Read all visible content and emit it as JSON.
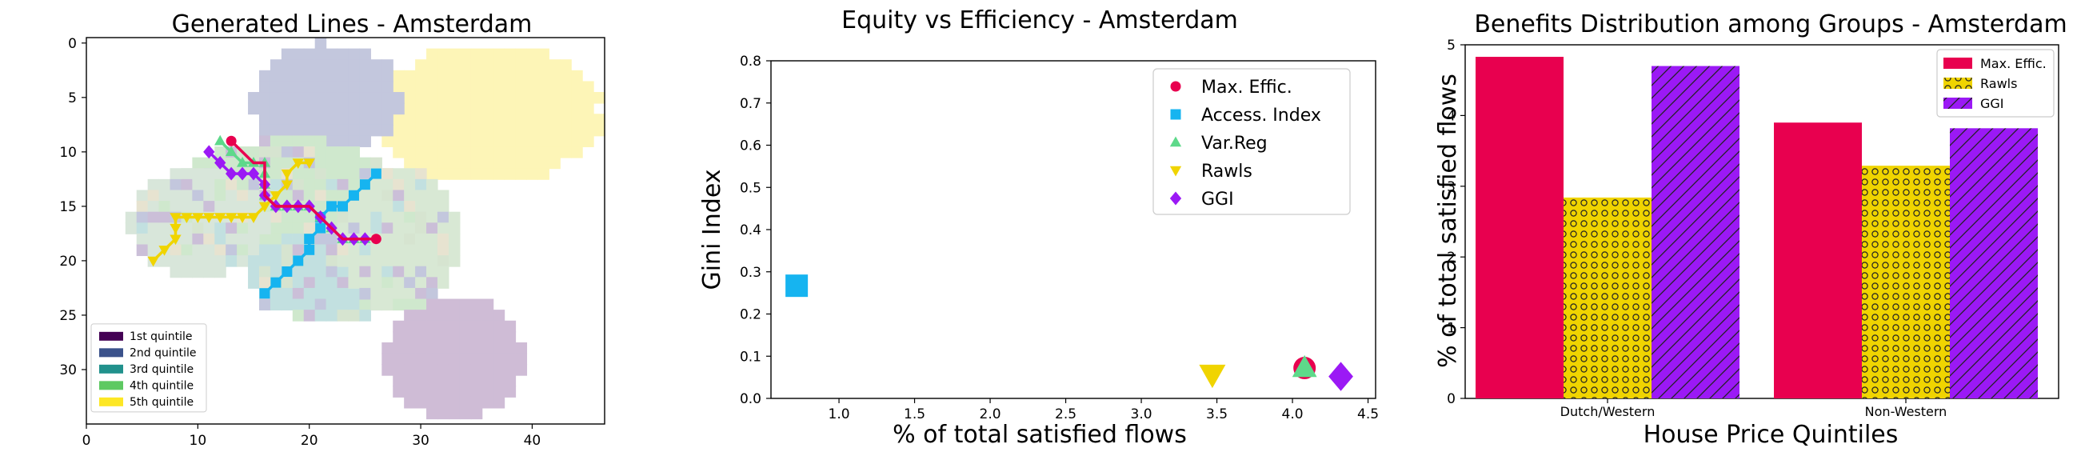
{
  "colors": {
    "max_effic": "#e8004f",
    "access_index": "#16b4f0",
    "var_reg": "#5ed98a",
    "rawls": "#f0d400",
    "ggi": "#9b19f5",
    "quintile_1": "#440154",
    "quintile_2": "#3b528b",
    "quintile_3": "#21918c",
    "quintile_4": "#5ec962",
    "quintile_5": "#fde725"
  },
  "chart_data": [
    {
      "type": "map",
      "title": "Generated Lines - Amsterdam",
      "xlim": [
        0,
        46.5
      ],
      "ylim": [
        35,
        -0.5
      ],
      "x_ticks": [
        "0",
        "10",
        "20",
        "30",
        "40"
      ],
      "y_ticks": [
        "0",
        "5",
        "10",
        "15",
        "20",
        "25",
        "30"
      ],
      "legend": {
        "placement": "lower-left",
        "entries": [
          "1st quintile",
          "2nd quintile",
          "3rd quintile",
          "4th quintile",
          "5th quintile"
        ]
      },
      "series": [
        {
          "name": "Max. Effic.",
          "marker": "circle",
          "points": [
            [
              13,
              9
            ],
            [
              14,
              10
            ],
            [
              15,
              11
            ],
            [
              16,
              11
            ],
            [
              16,
              12
            ],
            [
              16,
              13
            ],
            [
              16,
              14
            ],
            [
              17,
              15
            ],
            [
              18,
              15
            ],
            [
              19,
              15
            ],
            [
              20,
              15
            ],
            [
              21,
              16
            ],
            [
              22,
              17
            ],
            [
              23,
              18
            ],
            [
              24,
              18
            ],
            [
              25,
              18
            ],
            [
              26,
              18
            ]
          ]
        },
        {
          "name": "Access. Index",
          "marker": "square",
          "points": [
            [
              16,
              23
            ],
            [
              17,
              22
            ],
            [
              18,
              21
            ],
            [
              19,
              20
            ],
            [
              20,
              19
            ],
            [
              20,
              18
            ],
            [
              21,
              17
            ],
            [
              21,
              16
            ],
            [
              22,
              15
            ],
            [
              23,
              15
            ],
            [
              24,
              14
            ],
            [
              25,
              13
            ],
            [
              26,
              12
            ]
          ]
        },
        {
          "name": "Var.Reg",
          "marker": "triangle-up",
          "points": [
            [
              12,
              9
            ],
            [
              13,
              10
            ],
            [
              14,
              11
            ],
            [
              15,
              11
            ],
            [
              16,
              11
            ],
            [
              16,
              12
            ],
            [
              16,
              13
            ],
            [
              16,
              14
            ],
            [
              17,
              15
            ],
            [
              18,
              15
            ],
            [
              19,
              15
            ],
            [
              20,
              15
            ],
            [
              21,
              16
            ],
            [
              22,
              17
            ],
            [
              23,
              18
            ],
            [
              24,
              18
            ],
            [
              25,
              18
            ]
          ]
        },
        {
          "name": "Rawls",
          "marker": "triangle-down",
          "points": [
            [
              6,
              20
            ],
            [
              7,
              19
            ],
            [
              8,
              18
            ],
            [
              8,
              17
            ],
            [
              8,
              16
            ],
            [
              9,
              16
            ],
            [
              10,
              16
            ],
            [
              11,
              16
            ],
            [
              12,
              16
            ],
            [
              13,
              16
            ],
            [
              14,
              16
            ],
            [
              15,
              16
            ],
            [
              16,
              15
            ],
            [
              17,
              14
            ],
            [
              18,
              13
            ],
            [
              18,
              12
            ],
            [
              19,
              11
            ],
            [
              20,
              11
            ]
          ]
        },
        {
          "name": "GGI",
          "marker": "diamond",
          "points": [
            [
              11,
              10
            ],
            [
              12,
              11
            ],
            [
              13,
              12
            ],
            [
              14,
              12
            ],
            [
              15,
              12
            ],
            [
              16,
              13
            ],
            [
              16,
              14
            ],
            [
              17,
              15
            ],
            [
              18,
              15
            ],
            [
              19,
              15
            ],
            [
              20,
              15
            ],
            [
              21,
              16
            ],
            [
              22,
              17
            ],
            [
              23,
              18
            ],
            [
              24,
              18
            ],
            [
              25,
              18
            ]
          ]
        }
      ]
    },
    {
      "type": "scatter",
      "title": "Equity vs Efficiency - Amsterdam",
      "xlabel": "% of total satisfied flows",
      "ylabel": "Gini Index",
      "xlim": [
        0.55,
        4.55
      ],
      "ylim": [
        0,
        0.8
      ],
      "x_ticks": [
        "1.0",
        "1.5",
        "2.0",
        "2.5",
        "3.0",
        "3.5",
        "4.0",
        "4.5"
      ],
      "y_ticks": [
        "0.0",
        "0.1",
        "0.2",
        "0.3",
        "0.4",
        "0.5",
        "0.6",
        "0.7",
        "0.8"
      ],
      "legend_placement": "top-right",
      "series": [
        {
          "name": "Max. Effic.",
          "marker": "circle",
          "x": 4.08,
          "y": 0.072
        },
        {
          "name": "Access. Index",
          "marker": "square",
          "x": 0.72,
          "y": 0.267
        },
        {
          "name": "Var.Reg",
          "marker": "triangle-up",
          "x": 4.08,
          "y": 0.072
        },
        {
          "name": "Rawls",
          "marker": "triangle-down",
          "x": 3.47,
          "y": 0.057
        },
        {
          "name": "GGI",
          "marker": "diamond",
          "x": 4.32,
          "y": 0.052
        }
      ]
    },
    {
      "type": "bar",
      "title": "Benefits Distribution among Groups - Amsterdam",
      "xlabel": "House Price Quintiles",
      "ylabel": "% of total satisfied flows",
      "ylim": [
        0,
        5
      ],
      "y_ticks": [
        "0",
        "1",
        "2",
        "3",
        "4",
        "5"
      ],
      "categories": [
        "Dutch/Western",
        "Non-Western"
      ],
      "legend_placement": "top-right",
      "series": [
        {
          "name": "Max. Effic.",
          "values": [
            4.83,
            3.9
          ]
        },
        {
          "name": "Rawls",
          "values": [
            2.84,
            3.29
          ]
        },
        {
          "name": "GGI",
          "values": [
            4.7,
            3.82
          ]
        }
      ]
    }
  ]
}
